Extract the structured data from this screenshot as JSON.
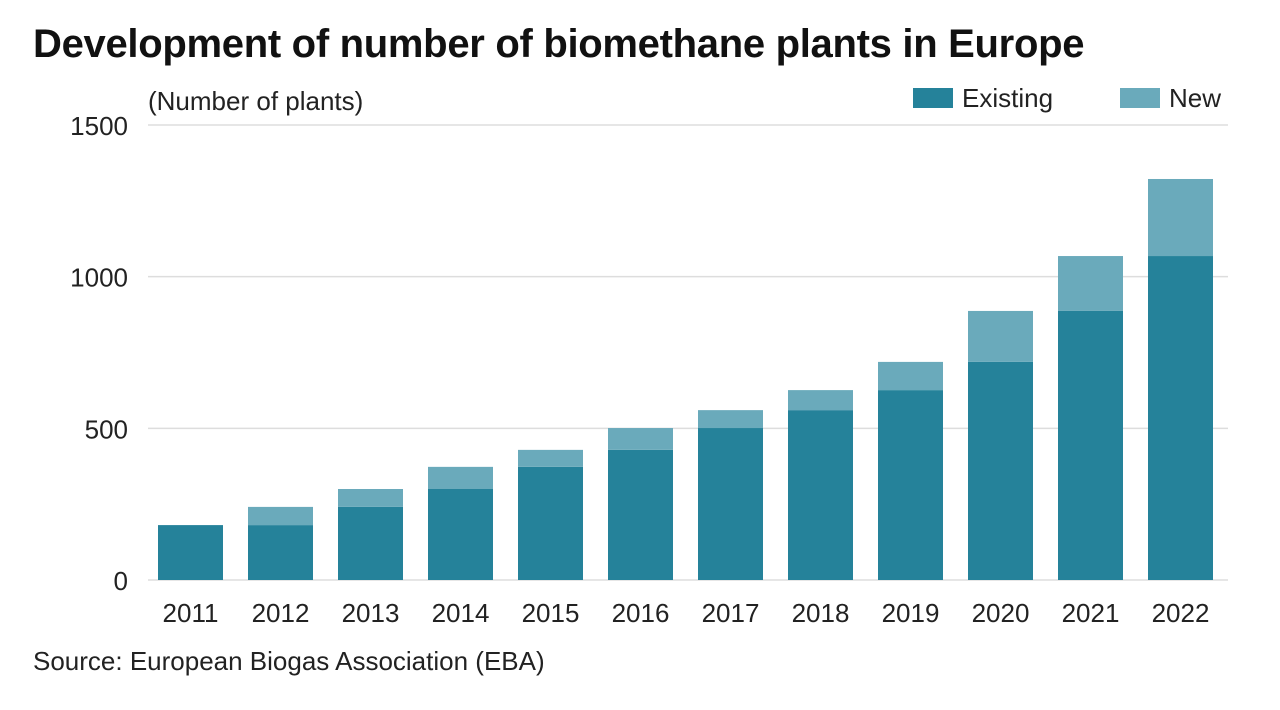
{
  "title": "Development of number of biomethane plants in Europe",
  "source": "Source: European Biogas Association (EBA)",
  "colors": {
    "existing": "#25829a",
    "new": "#6aaabb",
    "grid": "#dddddd"
  },
  "chart_data": {
    "type": "bar",
    "stacked": true,
    "title": "Development of number of biomethane plants in Europe",
    "ylabel": "(Number of plants)",
    "xlabel": "",
    "ylim": [
      0,
      1500
    ],
    "yticks": [
      0,
      500,
      1000,
      1500
    ],
    "grid": true,
    "legend_position": "top-right",
    "categories": [
      "2011",
      "2012",
      "2013",
      "2014",
      "2015",
      "2016",
      "2017",
      "2018",
      "2019",
      "2020",
      "2021",
      "2022"
    ],
    "series": [
      {
        "name": "Existing",
        "values": [
          181,
          181,
          241,
          300,
          373,
          429,
          501,
          560,
          626,
          719,
          887,
          1068
        ]
      },
      {
        "name": "New",
        "values": [
          0,
          60,
          59,
          73,
          56,
          72,
          59,
          66,
          93,
          168,
          181,
          254
        ]
      }
    ]
  }
}
